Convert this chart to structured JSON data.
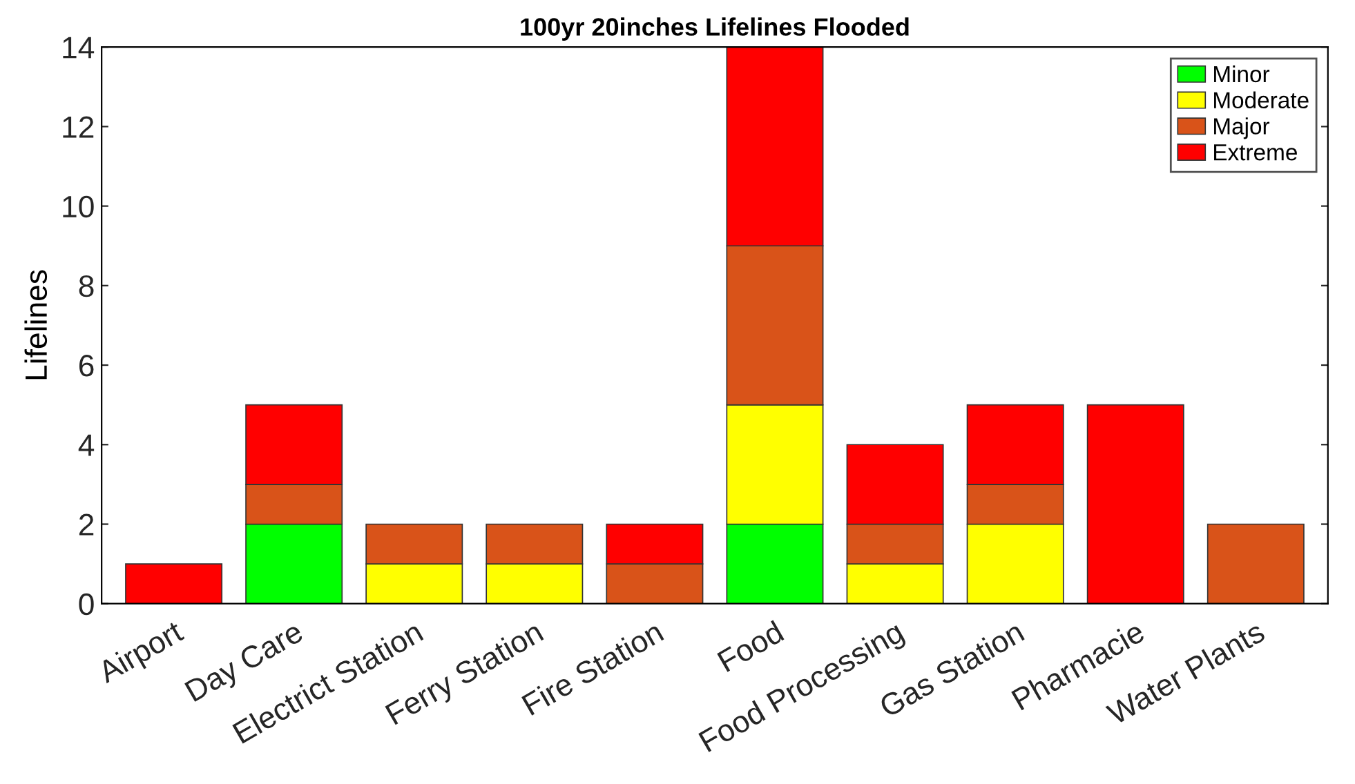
{
  "chart_data": {
    "type": "bar",
    "title": "100yr 20inches Lifelines Flooded",
    "ylabel": "Lifelines",
    "categories": [
      "Airport",
      "Day Care",
      "Electrict Station",
      "Ferry Station",
      "Fire Station",
      "Food",
      "Food Processing",
      "Gas Station",
      "Pharmacie",
      "Water Plants"
    ],
    "stacked": true,
    "series": [
      {
        "name": "Minor",
        "color": "#00ff00",
        "values": [
          null,
          2,
          null,
          null,
          null,
          2,
          null,
          null,
          null,
          null
        ]
      },
      {
        "name": "Moderate",
        "color": "#ffff00",
        "values": [
          null,
          null,
          1,
          1,
          null,
          3,
          1,
          2,
          null,
          null
        ]
      },
      {
        "name": "Major",
        "color": "#d95319",
        "values": [
          null,
          1,
          1,
          1,
          1,
          4,
          1,
          1,
          null,
          2
        ]
      },
      {
        "name": "Extreme",
        "color": "#ff0000",
        "values": [
          1,
          2,
          null,
          null,
          1,
          5,
          2,
          2,
          5,
          null
        ]
      }
    ],
    "ylim": [
      0,
      14
    ],
    "yticks": [
      0,
      2,
      4,
      6,
      8,
      10,
      12,
      14
    ],
    "grid": false,
    "legend": "top right"
  }
}
